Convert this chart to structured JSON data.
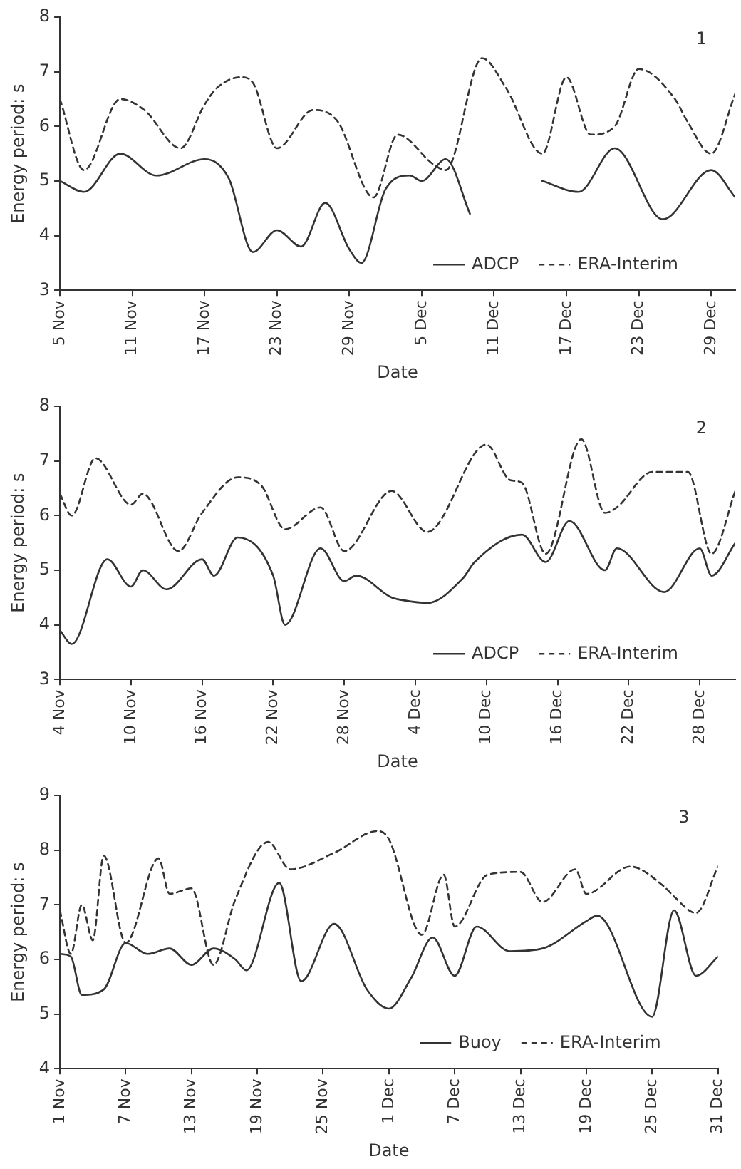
{
  "chart_data": [
    {
      "type": "line",
      "xlabel": "Date",
      "ylabel": "Energy period: s",
      "legend": "bottom right",
      "annotations": [
        "1"
      ],
      "xlim": [
        "--11-05",
        "--12-31"
      ],
      "xticks": [
        {
          "value": "--11-05",
          "label": "5 Nov"
        },
        {
          "value": "--11-11",
          "label": "11 Nov"
        },
        {
          "value": "--11-17",
          "label": "17 Nov"
        },
        {
          "value": "--11-23",
          "label": "23 Nov"
        },
        {
          "value": "--11-29",
          "label": "29 Nov"
        },
        {
          "value": "--12-05",
          "label": "5 Dec"
        },
        {
          "value": "--12-11",
          "label": "11 Dec"
        },
        {
          "value": "--12-17",
          "label": "17 Dec"
        },
        {
          "value": "--12-23",
          "label": "23 Dec"
        },
        {
          "value": "--12-29",
          "label": "29 Dec"
        }
      ],
      "ylim": [
        3,
        8
      ],
      "yticks": [
        3,
        4,
        5,
        6,
        7,
        8
      ],
      "series": [
        {
          "name": "ADCP",
          "color": "#333333",
          "line_style": "solid",
          "x": [
            "--11-05",
            "--11-07",
            "--11-10",
            "--11-13",
            "--11-17",
            "--11-19",
            "--11-21",
            "--11-23",
            "--11-25",
            "--11-27",
            "--11-29",
            "--11-30",
            "--12-02",
            "--12-04",
            "--12-05",
            "--12-07",
            "--12-09",
            "--12-12",
            "--12-15",
            "--12-18",
            "--12-21",
            "--12-25",
            "--12-29",
            "--12-31"
          ],
          "values": [
            5.0,
            4.8,
            5.5,
            5.1,
            5.4,
            5.05,
            3.7,
            4.1,
            3.8,
            4.6,
            3.75,
            3.5,
            4.85,
            5.1,
            5.0,
            5.4,
            4.4,
            null,
            5.0,
            4.8,
            5.6,
            4.3,
            5.2,
            4.7
          ]
        },
        {
          "name": "ERA-Interim",
          "color": "#333333",
          "line_style": "dashed",
          "x": [
            "--11-05",
            "--11-07",
            "--11-10",
            "--11-12",
            "--11-15",
            "--11-17",
            "--11-18",
            "--11-20",
            "--11-21",
            "--11-23",
            "--11-26",
            "--11-28",
            "--12-01",
            "--12-03",
            "--12-06",
            "--12-07",
            "--12-10",
            "--12-12",
            "--12-15",
            "--12-17",
            "--12-19",
            "--12-21",
            "--12-23",
            "--12-26",
            "--12-27",
            "--12-29",
            "--12-31"
          ],
          "values": [
            6.5,
            5.2,
            6.5,
            6.3,
            5.6,
            6.4,
            6.7,
            6.9,
            6.8,
            5.6,
            6.3,
            6.1,
            4.7,
            5.85,
            5.3,
            5.2,
            7.25,
            6.7,
            5.5,
            6.9,
            5.85,
            6.0,
            7.05,
            6.5,
            6.1,
            5.5,
            6.6
          ]
        }
      ]
    },
    {
      "type": "line",
      "xlabel": "Date",
      "ylabel": "Energy period: s",
      "legend": "bottom right",
      "annotations": [
        "2"
      ],
      "xlim": [
        "--11-04",
        "--12-31"
      ],
      "xticks": [
        {
          "value": "--11-04",
          "label": "4 Nov"
        },
        {
          "value": "--11-10",
          "label": "10 Nov"
        },
        {
          "value": "--11-16",
          "label": "16 Nov"
        },
        {
          "value": "--11-22",
          "label": "22 Nov"
        },
        {
          "value": "--11-28",
          "label": "28 Nov"
        },
        {
          "value": "--12-04",
          "label": "4 Dec"
        },
        {
          "value": "--12-10",
          "label": "10 Dec"
        },
        {
          "value": "--12-16",
          "label": "16 Dec"
        },
        {
          "value": "--12-22",
          "label": "22 Dec"
        },
        {
          "value": "--12-28",
          "label": "28 Dec"
        }
      ],
      "ylim": [
        3,
        8
      ],
      "yticks": [
        3,
        4,
        5,
        6,
        7,
        8
      ],
      "series": [
        {
          "name": "ADCP",
          "color": "#333333",
          "line_style": "solid",
          "x": [
            "--11-04",
            "--11-05",
            "--11-08",
            "--11-10",
            "--11-11",
            "--11-13",
            "--11-16",
            "--11-17",
            "--11-19",
            "--11-22",
            "--11-23",
            "--11-26",
            "--11-28",
            "--11-29",
            "--12-02",
            "--12-03",
            "--12-05",
            "--12-08",
            "--12-09",
            "--12-13",
            "--12-15",
            "--12-17",
            "--12-20",
            "--12-21",
            "--12-25",
            "--12-28",
            "--12-29",
            "--12-31"
          ],
          "values": [
            3.9,
            3.65,
            5.2,
            4.7,
            5.0,
            4.65,
            5.2,
            4.9,
            5.6,
            4.9,
            4.0,
            5.4,
            4.8,
            4.9,
            4.5,
            4.45,
            4.4,
            4.85,
            5.15,
            5.65,
            5.15,
            5.9,
            5.0,
            5.4,
            4.6,
            5.4,
            4.9,
            5.5
          ]
        },
        {
          "name": "ERA-Interim",
          "color": "#333333",
          "line_style": "dashed",
          "x": [
            "--11-04",
            "--11-05",
            "--11-07",
            "--11-10",
            "--11-11",
            "--11-14",
            "--11-16",
            "--11-19",
            "--11-21",
            "--11-23",
            "--11-26",
            "--11-28",
            "--12-02",
            "--12-05",
            "--12-10",
            "--12-12",
            "--12-13",
            "--12-15",
            "--12-18",
            "--12-20",
            "--12-21",
            "--12-24",
            "--12-27",
            "--12-29",
            "--12-31"
          ],
          "values": [
            6.4,
            6.0,
            7.05,
            6.2,
            6.4,
            5.35,
            6.05,
            6.7,
            6.55,
            5.75,
            6.15,
            5.35,
            6.45,
            5.7,
            7.3,
            6.65,
            6.6,
            5.3,
            7.4,
            6.05,
            6.15,
            6.8,
            6.8,
            5.3,
            6.45
          ]
        }
      ]
    },
    {
      "type": "line",
      "xlabel": "Date",
      "ylabel": "Energy period: s",
      "legend": "bottom right",
      "annotations": [
        "3"
      ],
      "xlim": [
        "--11-01",
        "--12-31"
      ],
      "xticks": [
        {
          "value": "--11-01",
          "label": "1 Nov"
        },
        {
          "value": "--11-07",
          "label": "7 Nov"
        },
        {
          "value": "--11-13",
          "label": "13 Nov"
        },
        {
          "value": "--11-19",
          "label": "19 Nov"
        },
        {
          "value": "--11-25",
          "label": "25 Nov"
        },
        {
          "value": "--12-01",
          "label": "1 Dec"
        },
        {
          "value": "--12-07",
          "label": "7 Dec"
        },
        {
          "value": "--12-13",
          "label": "13 Dec"
        },
        {
          "value": "--12-19",
          "label": "19 Dec"
        },
        {
          "value": "--12-25",
          "label": "25 Dec"
        },
        {
          "value": "--12-31",
          "label": "31 Dec"
        }
      ],
      "ylim": [
        4,
        9
      ],
      "yticks": [
        4,
        5,
        6,
        7,
        8,
        9
      ],
      "series": [
        {
          "name": "Buoy",
          "color": "#333333",
          "line_style": "solid",
          "x": [
            "--11-01",
            "--11-02",
            "--11-03",
            "--11-05",
            "--11-07",
            "--11-09",
            "--11-11",
            "--11-13",
            "--11-15",
            "--11-17",
            "--11-18",
            "--11-21",
            "--11-23",
            "--11-26",
            "--11-29",
            "--12-01",
            "--12-03",
            "--12-05",
            "--12-07",
            "--12-09",
            "--12-12",
            "--12-15",
            "--12-19",
            "--12-20",
            "--12-25",
            "--12-27",
            "--12-29",
            "--12-31"
          ],
          "values": [
            6.1,
            6.05,
            5.35,
            5.45,
            6.3,
            6.1,
            6.2,
            5.9,
            6.2,
            6.0,
            5.8,
            7.4,
            5.6,
            6.65,
            5.45,
            5.1,
            5.65,
            6.4,
            5.7,
            6.6,
            6.15,
            6.2,
            6.7,
            6.8,
            4.95,
            6.9,
            5.7,
            6.05
          ]
        },
        {
          "name": "ERA-Interim",
          "color": "#333333",
          "line_style": "dashed",
          "x": [
            "--11-01",
            "--11-02",
            "--11-03",
            "--11-04",
            "--11-05",
            "--11-07",
            "--11-10",
            "--11-11",
            "--11-13",
            "--11-15",
            "--11-17",
            "--11-20",
            "--11-22",
            "--11-26",
            "--11-30",
            "--12-01",
            "--12-04",
            "--12-06",
            "--12-07",
            "--12-10",
            "--12-13",
            "--12-15",
            "--12-18",
            "--12-19",
            "--12-23",
            "--12-26",
            "--12-27",
            "--12-29",
            "--12-31"
          ],
          "values": [
            6.9,
            6.1,
            7.0,
            6.35,
            7.9,
            6.3,
            7.85,
            7.2,
            7.3,
            5.9,
            7.1,
            8.15,
            7.65,
            7.95,
            8.35,
            8.2,
            6.45,
            7.55,
            6.6,
            7.55,
            7.6,
            7.05,
            7.65,
            7.2,
            7.7,
            7.35,
            7.15,
            6.85,
            7.7
          ]
        }
      ]
    }
  ]
}
